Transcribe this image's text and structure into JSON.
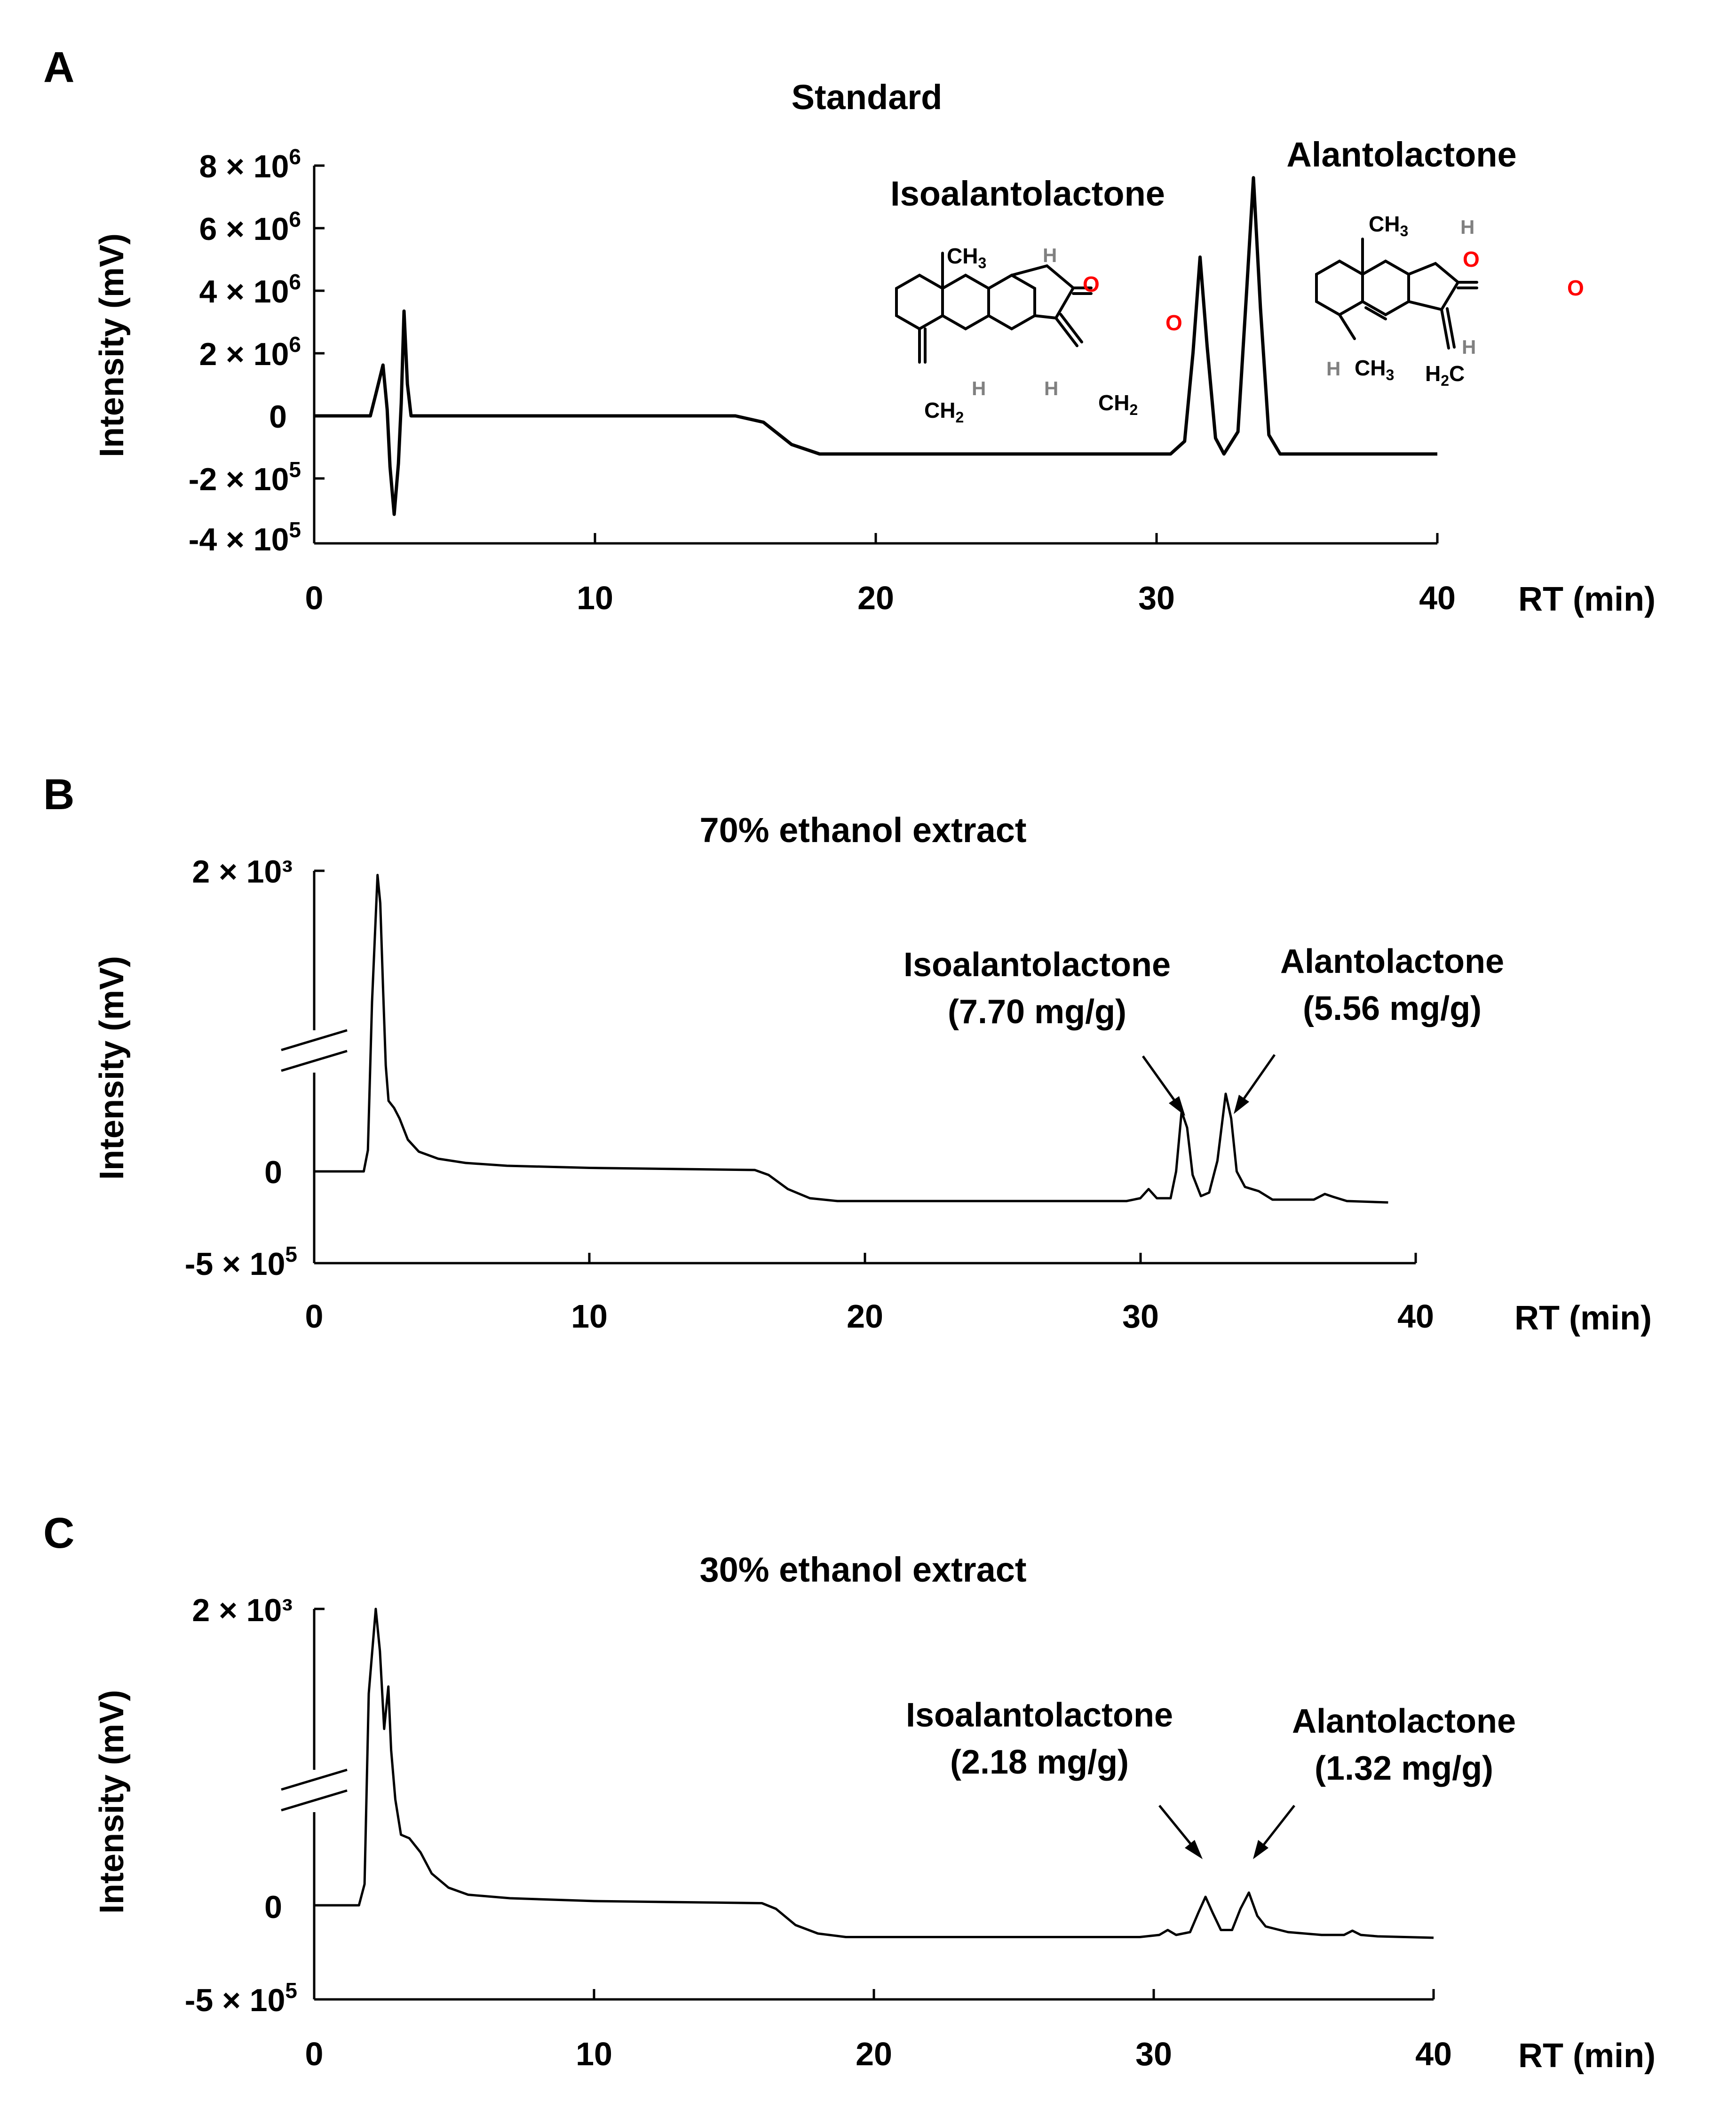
{
  "chart_data": [
    {
      "panel_label": "A",
      "type": "line",
      "title": "Standard",
      "xlabel": "RT (min)",
      "ylabel": "Intensity (mV)",
      "xlim": [
        0,
        40
      ],
      "x_ticks": [
        "0",
        "10",
        "20",
        "30",
        "40"
      ],
      "y_ticks": [
        {
          "base": "8 × 10",
          "exp": "6"
        },
        {
          "base": "6 × 10",
          "exp": "6"
        },
        {
          "base": "4 × 10",
          "exp": "6"
        },
        {
          "base": "2 × 10",
          "exp": "6"
        },
        {
          "base": "0",
          "exp": ""
        },
        {
          "base": "-2 × 10",
          "exp": "5"
        },
        {
          "base": "-4 × 10",
          "exp": "5"
        }
      ],
      "series": [
        {
          "name": "Standard",
          "points": [
            [
              0,
              0
            ],
            [
              2.0,
              0
            ],
            [
              2.2,
              0.7
            ],
            [
              2.45,
              1.6
            ],
            [
              2.6,
              0.2
            ],
            [
              2.7,
              -1.6
            ],
            [
              2.85,
              -3.1
            ],
            [
              3.0,
              -1.5
            ],
            [
              3.1,
              0.4
            ],
            [
              3.2,
              3.3
            ],
            [
              3.32,
              1.0
            ],
            [
              3.45,
              0
            ],
            [
              15.0,
              0
            ],
            [
              16.0,
              -0.2
            ],
            [
              17.0,
              -0.9
            ],
            [
              18.0,
              -1.2
            ],
            [
              30.5,
              -1.2
            ],
            [
              31.0,
              -0.8
            ],
            [
              31.3,
              2.0
            ],
            [
              31.55,
              5.0
            ],
            [
              31.8,
              2.2
            ],
            [
              32.1,
              -0.7
            ],
            [
              32.4,
              -1.2
            ],
            [
              32.9,
              -0.5
            ],
            [
              33.2,
              3.8
            ],
            [
              33.45,
              7.5
            ],
            [
              33.7,
              3.4
            ],
            [
              34.0,
              -0.6
            ],
            [
              34.4,
              -1.2
            ],
            [
              40,
              -1.2
            ]
          ]
        }
      ],
      "compounds": [
        {
          "name": "Isoalantolactone",
          "rt": 31.55
        },
        {
          "name": "Alantolactone",
          "rt": 33.45
        }
      ]
    },
    {
      "panel_label": "B",
      "type": "line",
      "title": "70% ethanol extract",
      "xlabel": "RT (min)",
      "ylabel": "Intensity (mV)",
      "xlim": [
        0,
        40
      ],
      "x_ticks": [
        "0",
        "10",
        "20",
        "30",
        "40"
      ],
      "y_ticks": [
        {
          "base": "2 × 10³",
          "exp": ""
        },
        {
          "base": "0",
          "exp": ""
        },
        {
          "base": "-5 × 10",
          "exp": "5"
        }
      ],
      "axis_break": true,
      "series": [
        {
          "name": "70% ethanol extract",
          "points": [
            [
              0,
              0
            ],
            [
              1.8,
              0
            ],
            [
              1.95,
              0.3
            ],
            [
              2.1,
              2.4
            ],
            [
              2.3,
              4.2
            ],
            [
              2.4,
              3.8
            ],
            [
              2.5,
              2.6
            ],
            [
              2.6,
              1.5
            ],
            [
              2.7,
              1.0
            ],
            [
              2.9,
              0.9
            ],
            [
              3.1,
              0.75
            ],
            [
              3.4,
              0.45
            ],
            [
              3.8,
              0.28
            ],
            [
              4.5,
              0.18
            ],
            [
              5.5,
              0.12
            ],
            [
              7.0,
              0.08
            ],
            [
              10.0,
              0.05
            ],
            [
              14.0,
              0.03
            ],
            [
              16.0,
              0.02
            ],
            [
              16.5,
              -0.05
            ],
            [
              17.2,
              -0.25
            ],
            [
              18.0,
              -0.38
            ],
            [
              19.0,
              -0.42
            ],
            [
              29.5,
              -0.42
            ],
            [
              30.0,
              -0.38
            ],
            [
              30.3,
              -0.25
            ],
            [
              30.6,
              -0.38
            ],
            [
              31.1,
              -0.38
            ],
            [
              31.3,
              0.0
            ],
            [
              31.5,
              0.85
            ],
            [
              31.7,
              0.62
            ],
            [
              31.9,
              -0.05
            ],
            [
              32.2,
              -0.35
            ],
            [
              32.5,
              -0.3
            ],
            [
              32.8,
              0.15
            ],
            [
              33.1,
              1.1
            ],
            [
              33.3,
              0.75
            ],
            [
              33.5,
              0.0
            ],
            [
              33.8,
              -0.22
            ],
            [
              34.3,
              -0.28
            ],
            [
              34.8,
              -0.4
            ],
            [
              36.3,
              -0.4
            ],
            [
              36.7,
              -0.32
            ],
            [
              37.0,
              -0.36
            ],
            [
              37.5,
              -0.42
            ],
            [
              39.0,
              -0.44
            ]
          ]
        }
      ],
      "annotations": [
        {
          "name": "Isoalantolactone",
          "value": "(7.70 mg/g)",
          "rt": 31.55
        },
        {
          "name": "Alantolactone",
          "value": "(5.56 mg/g)",
          "rt": 33.15
        }
      ]
    },
    {
      "panel_label": "C",
      "type": "line",
      "title": "30% ethanol extract",
      "xlabel": "RT (min)",
      "ylabel": "Intensity (mV)",
      "xlim": [
        0,
        40
      ],
      "x_ticks": [
        "0",
        "10",
        "20",
        "30",
        "40"
      ],
      "y_ticks": [
        {
          "base": "2 × 10³",
          "exp": ""
        },
        {
          "base": "0",
          "exp": ""
        },
        {
          "base": "-5 × 10",
          "exp": "5"
        }
      ],
      "axis_break": true,
      "series": [
        {
          "name": "30% ethanol extract",
          "points": [
            [
              0,
              0
            ],
            [
              1.6,
              0
            ],
            [
              1.8,
              0.3
            ],
            [
              1.95,
              3.0
            ],
            [
              2.2,
              4.2
            ],
            [
              2.35,
              3.6
            ],
            [
              2.5,
              2.5
            ],
            [
              2.65,
              3.1
            ],
            [
              2.75,
              2.2
            ],
            [
              2.9,
              1.5
            ],
            [
              3.1,
              1.0
            ],
            [
              3.4,
              0.95
            ],
            [
              3.8,
              0.75
            ],
            [
              4.2,
              0.45
            ],
            [
              4.8,
              0.25
            ],
            [
              5.5,
              0.15
            ],
            [
              7.0,
              0.1
            ],
            [
              10.0,
              0.06
            ],
            [
              14.0,
              0.04
            ],
            [
              16.0,
              0.03
            ],
            [
              16.5,
              -0.05
            ],
            [
              17.2,
              -0.28
            ],
            [
              18.0,
              -0.4
            ],
            [
              19.0,
              -0.45
            ],
            [
              29.5,
              -0.45
            ],
            [
              30.2,
              -0.42
            ],
            [
              30.5,
              -0.35
            ],
            [
              30.8,
              -0.42
            ],
            [
              31.3,
              -0.38
            ],
            [
              31.6,
              -0.1
            ],
            [
              31.85,
              0.12
            ],
            [
              32.1,
              -0.1
            ],
            [
              32.4,
              -0.35
            ],
            [
              32.8,
              -0.35
            ],
            [
              33.1,
              -0.05
            ],
            [
              33.4,
              0.18
            ],
            [
              33.7,
              -0.15
            ],
            [
              34.0,
              -0.3
            ],
            [
              34.8,
              -0.38
            ],
            [
              36.0,
              -0.42
            ],
            [
              36.8,
              -0.42
            ],
            [
              37.1,
              -0.36
            ],
            [
              37.4,
              -0.42
            ],
            [
              38.0,
              -0.44
            ],
            [
              40.0,
              -0.46
            ]
          ]
        }
      ],
      "annotations": [
        {
          "name": "Isoalantolactone",
          "value": "(2.18 mg/g)",
          "rt": 31.85
        },
        {
          "name": "Alantolactone",
          "value": "(1.32 mg/g)",
          "rt": 33.4
        }
      ]
    }
  ],
  "structures": {
    "isoalantolactone": {
      "ch3": "CH",
      "ch3_sub": "3",
      "ch2": "CH",
      "ch2_sub": "2",
      "h": "H",
      "o": "O"
    },
    "alantolactone": {
      "ch3": "CH",
      "ch3_sub": "3",
      "h2c": "H",
      "h2c_sub": "2",
      "h2c_c": "C",
      "h": "H",
      "o": "O"
    },
    "colors": {
      "oxygen": "#ff0000",
      "hydrogen": "#808080",
      "bond": "#000000"
    }
  }
}
